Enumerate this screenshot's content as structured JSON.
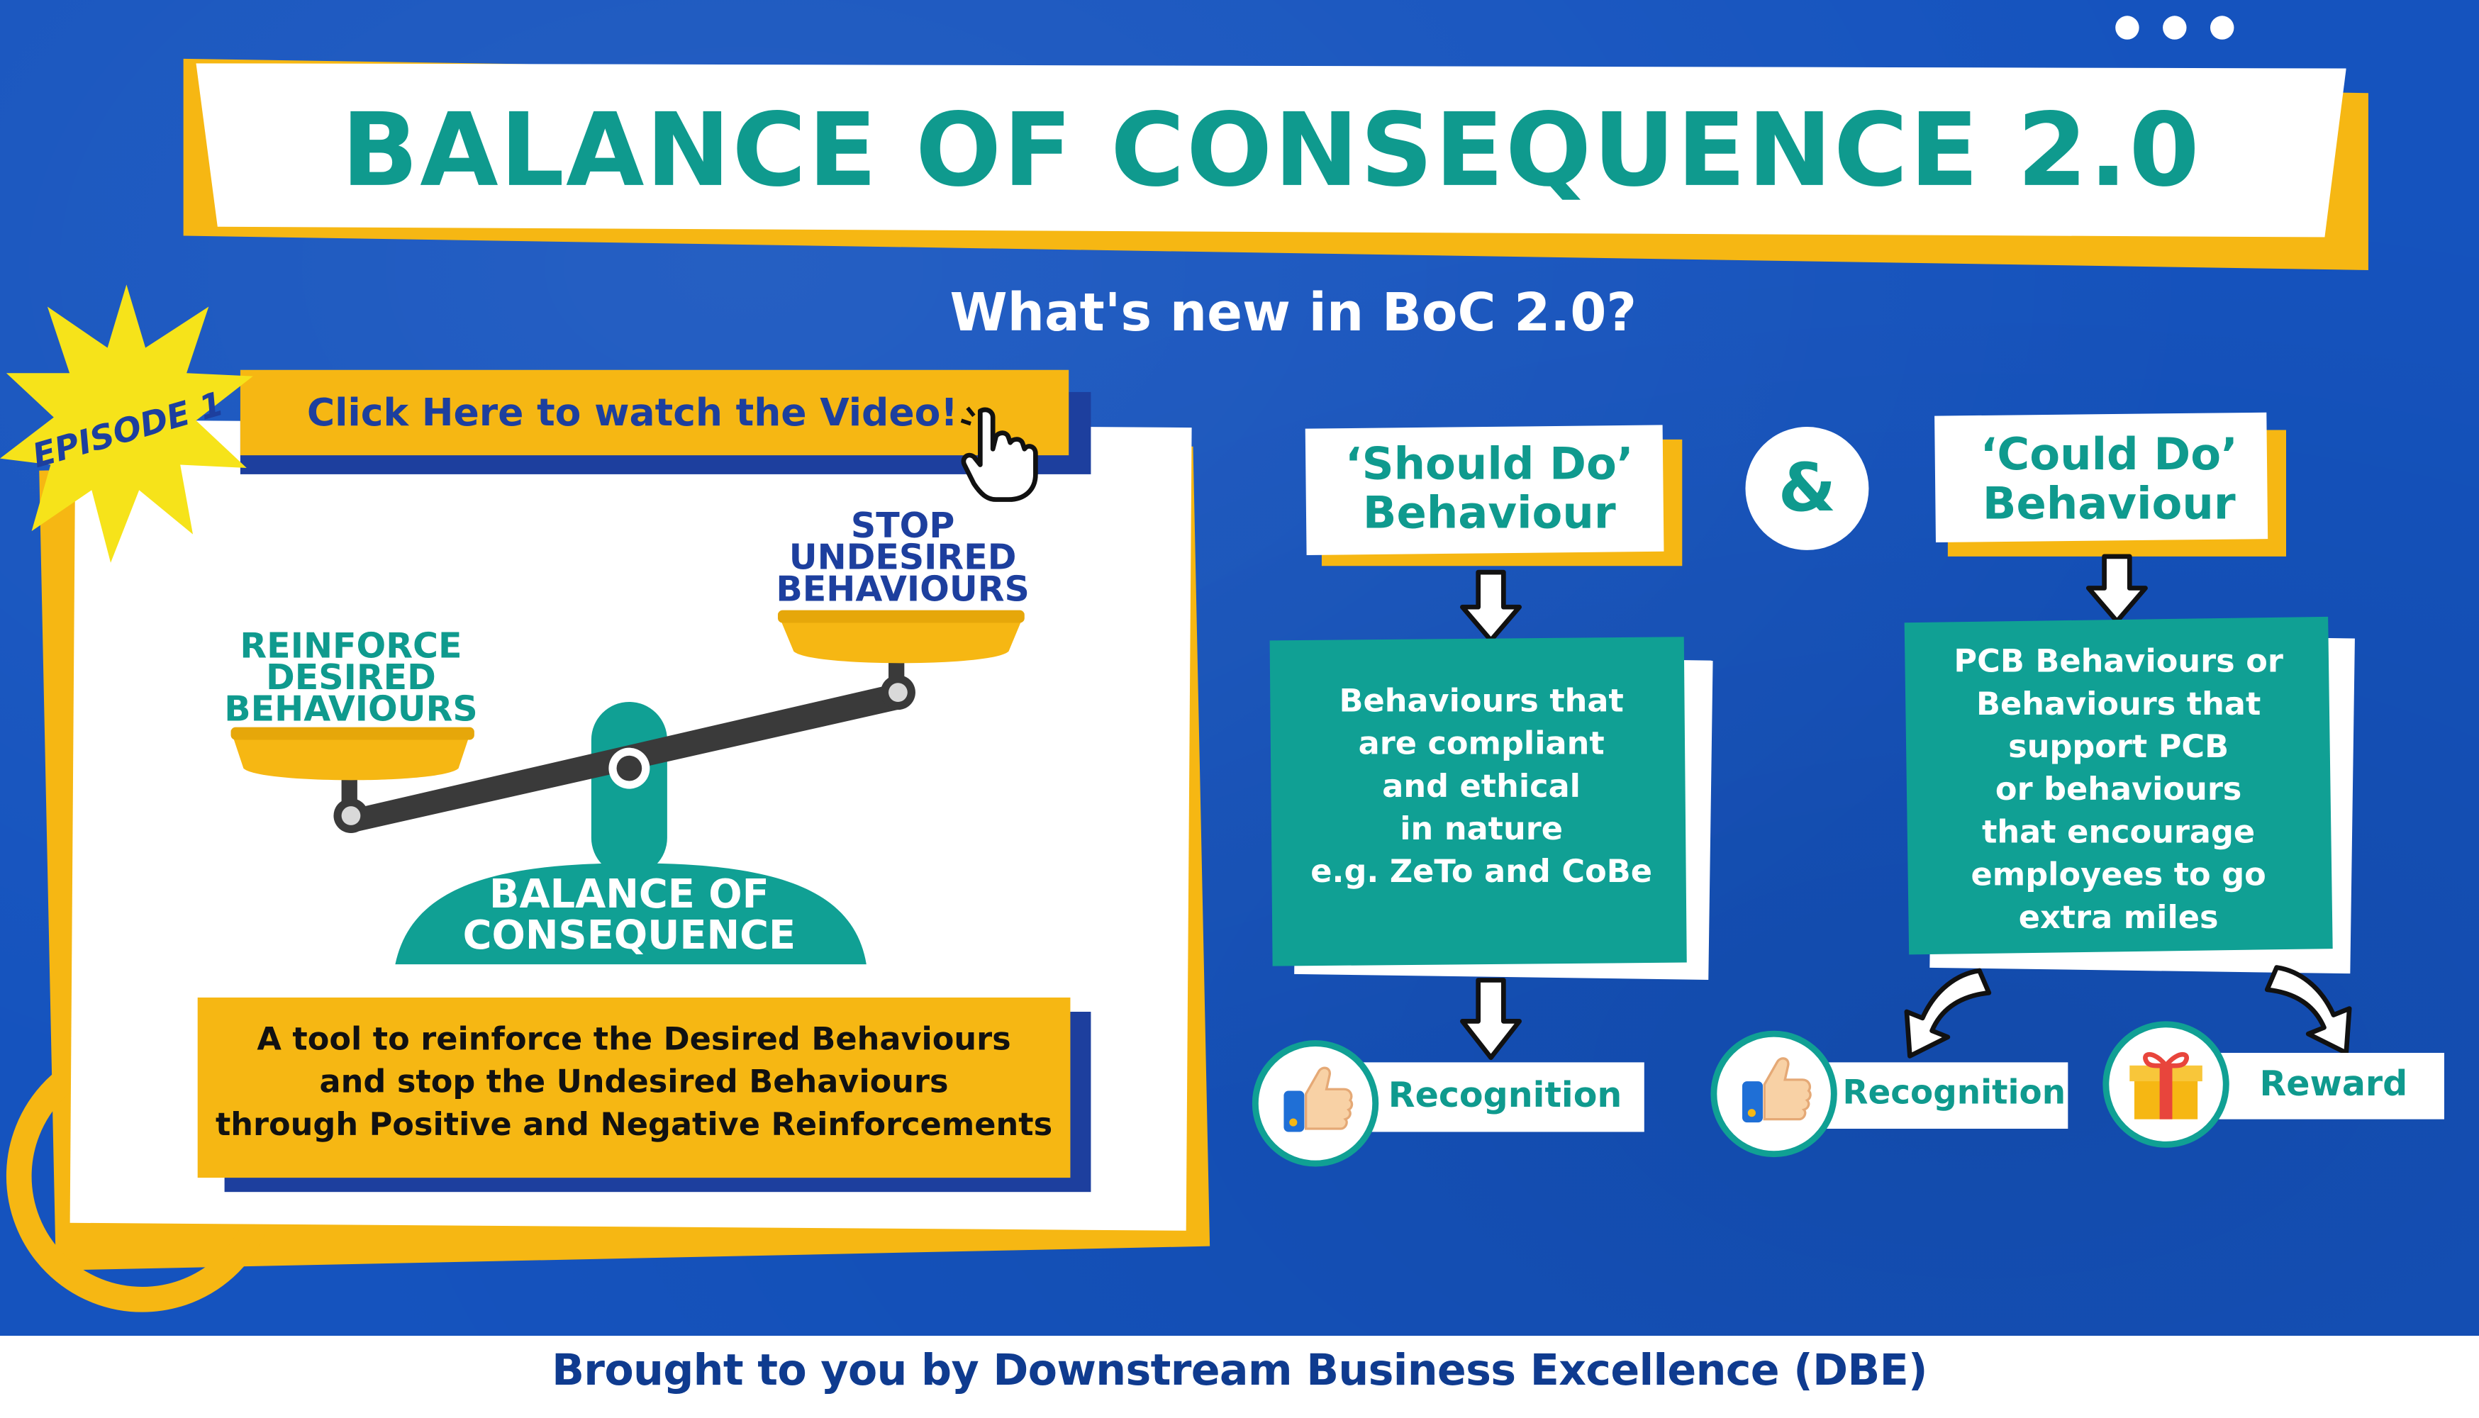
{
  "title": "BALANCE OF CONSEQUENCE 2.0",
  "subtitle": "What's new in BoC 2.0?",
  "episode": {
    "badge": "EPISODE 1",
    "video_link": "Click Here to watch the Video!",
    "scale_left": [
      "REINFORCE",
      "DESIRED",
      "BEHAVIOURS"
    ],
    "scale_right": [
      "STOP",
      "UNDESIRED",
      "BEHAVIOURS"
    ],
    "scale_base": [
      "BALANCE OF",
      "CONSEQUENCE"
    ],
    "description": [
      "A tool to reinforce the Desired Behaviours",
      "and stop the Undesired Behaviours",
      "through Positive and Negative Reinforcements"
    ]
  },
  "ampersand": "&",
  "should_do": {
    "heading": [
      "‘Should Do’",
      "Behaviour"
    ],
    "body": [
      "Behaviours that",
      "are compliant",
      "and ethical",
      "in nature",
      "e.g. ZeTo and CoBe"
    ],
    "outcome": "Recognition"
  },
  "could_do": {
    "heading": [
      "‘Could Do’",
      "Behaviour"
    ],
    "body": [
      "PCB Behaviours or",
      "Behaviours that",
      "support PCB",
      "or behaviours",
      "that encourage",
      "employees to go",
      "extra miles"
    ],
    "outcome_1": "Recognition",
    "outcome_2": "Reward"
  },
  "footer": "Brought to you by Downstream Business Excellence (DBE)",
  "colors": {
    "blue": "#1553be",
    "yellow": "#f6b713",
    "teal": "#10a094",
    "navy": "#1d3f9e"
  },
  "icons": [
    "menu-dots-icon",
    "hand-pointer-icon",
    "thumbs-up-icon",
    "gift-icon",
    "arrow-down-icon"
  ]
}
